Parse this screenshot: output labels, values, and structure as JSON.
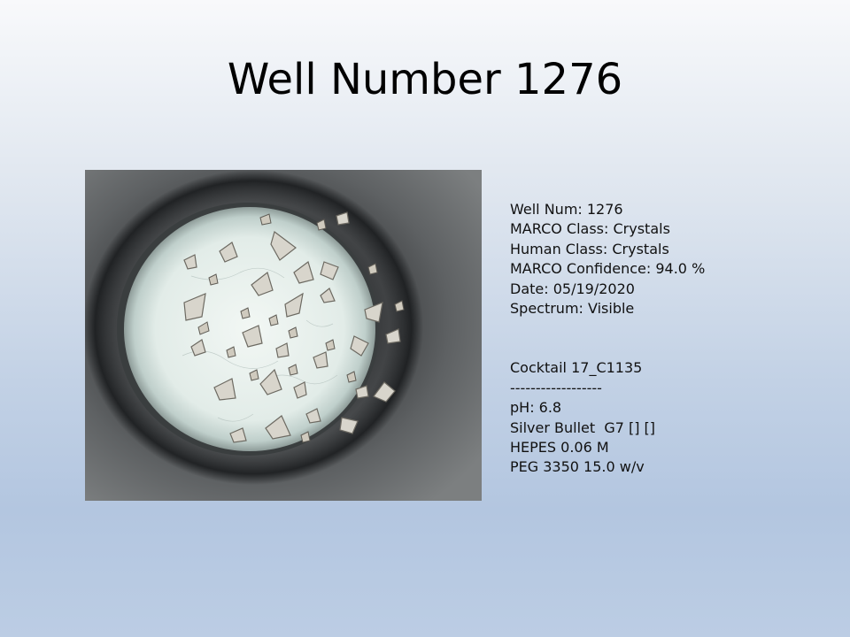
{
  "slide": {
    "title": "Well Number 1276"
  },
  "well_info": {
    "well_num": "Well Num: 1276",
    "marco_class": "MARCO Class: Crystals",
    "human_class": "Human Class: Crystals",
    "marco_confidence": "MARCO Confidence: 94.0 %",
    "date": "Date: 05/19/2020",
    "spectrum": "Spectrum: Visible"
  },
  "cocktail": {
    "name": "Cocktail 17_C1135",
    "divider": "------------------",
    "ph": "pH: 6.8",
    "additive": "Silver Bullet  G7 [] []",
    "buffer": "HEPES 0.06 M",
    "precipitant": "PEG 3350 15.0 w/v"
  },
  "image": {
    "depicts": "crystals-in-well-photo"
  }
}
